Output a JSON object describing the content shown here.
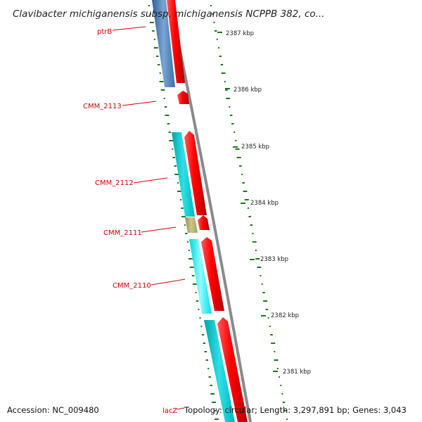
{
  "title": "Clavibacter michiganensis subsp. michiganensis NCPPB 382, co...",
  "colors": {
    "steel_blue": "#4f7fb5",
    "cyan": "#00d0d8",
    "light_cyan": "#00f0f8",
    "khaki": "#b7ae6e",
    "red": "#ff0000",
    "gc_skew": "#1a7a1a",
    "backbone": "#8a8a8a",
    "label_red": "#d40000"
  },
  "ticks": [
    {
      "label": "2387 kbp"
    },
    {
      "label": "2386 kbp"
    },
    {
      "label": "2385 kbp"
    },
    {
      "label": "2384 kbp"
    },
    {
      "label": "2383 kbp"
    },
    {
      "label": "2382 kbp"
    },
    {
      "label": "2381 kbp"
    }
  ],
  "gene_labels": [
    {
      "name": "ptrB"
    },
    {
      "name": "CMM_2113"
    },
    {
      "name": "CMM_2112"
    },
    {
      "name": "CMM_2111"
    },
    {
      "name": "CMM_2110"
    }
  ],
  "footer": {
    "accession": "Accession: NC_009480",
    "lacz": "lacZ",
    "summary": "Topology: circular; Length: 3,297,891 bp; Genes: 3,043"
  }
}
